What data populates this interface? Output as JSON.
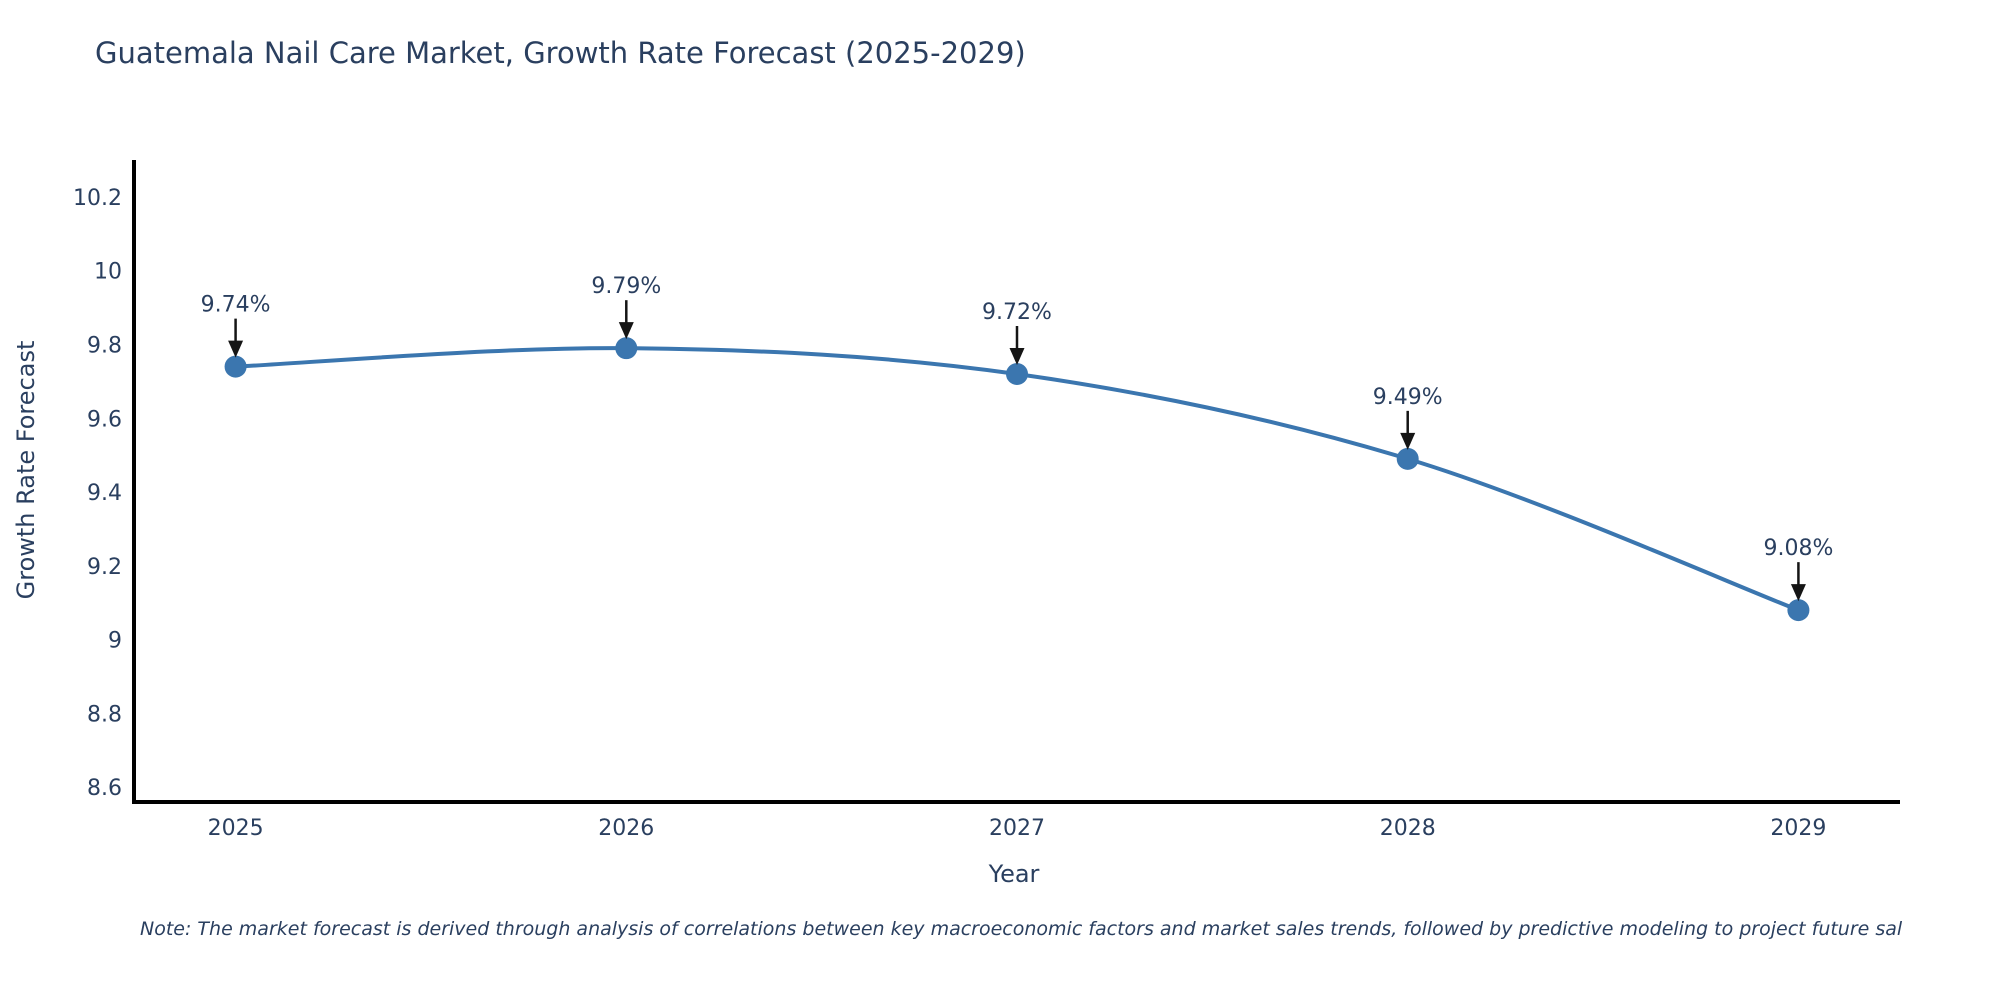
{
  "chart_data": {
    "type": "line",
    "title": "Guatemala Nail Care Market, Growth Rate Forecast (2025-2029)",
    "xlabel": "Year",
    "ylabel": "Growth Rate Forecast",
    "x": [
      2025,
      2026,
      2027,
      2028,
      2029
    ],
    "y": [
      9.74,
      9.79,
      9.72,
      9.49,
      9.08
    ],
    "point_labels": [
      "9.74%",
      "9.79%",
      "9.72%",
      "9.49%",
      "9.08%"
    ],
    "xtick_labels": [
      "2025",
      "2026",
      "2027",
      "2028",
      "2029"
    ],
    "ytick_vals": [
      8.6,
      8.8,
      9.0,
      9.2,
      9.4,
      9.6,
      9.8,
      10.0,
      10.2
    ],
    "ytick_labels": [
      "8.6",
      "8.8",
      "9",
      "9.2",
      "9.4",
      "9.6",
      "9.8",
      "10",
      "10.2"
    ],
    "xlim": [
      2024.74,
      2029.26
    ],
    "ylim": [
      8.56,
      10.3
    ],
    "line_shape": "spline",
    "grid": false,
    "legend": "none",
    "line_color": "#3b76af",
    "marker_color": "#3b76af",
    "arrow_color": "#151515",
    "text_color": "#2a3f5f",
    "axis_color": "#000000",
    "note": "Note: The market forecast is derived through analysis of correlations between key macroeconomic factors and market sales trends, followed by predictive modeling to project future sal"
  }
}
